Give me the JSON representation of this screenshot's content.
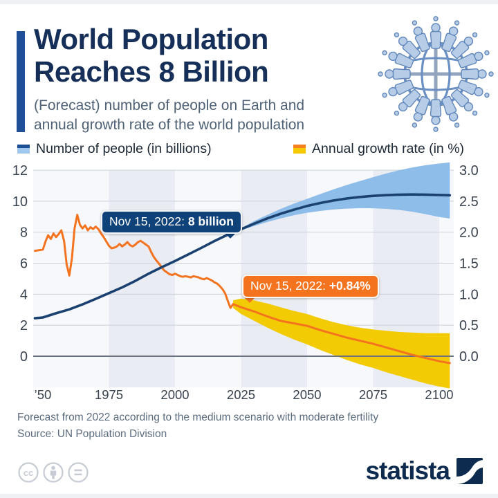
{
  "header": {
    "title_line1": "World Population",
    "title_line2": "Reaches 8 Billion",
    "subtitle_line1": "(Forecast) number of people on Earth and",
    "subtitle_line2": "annual growth rate of the world population"
  },
  "colors": {
    "accent_blue": "#1e4f97",
    "annotation_navy": "#10427a",
    "annotation_orange": "#f4731f",
    "brand_navy": "#0d2b4e"
  },
  "legend": {
    "items": [
      {
        "label": "Number of people (in billions)",
        "colors": [
          "#1c4f94",
          "#a0c8ee"
        ]
      },
      {
        "label": "Annual growth rate (in %)",
        "colors": [
          "#f5821f",
          "#f6c800"
        ]
      }
    ]
  },
  "annotations": {
    "population": {
      "prefix": "Nov 15, 2022: ",
      "value": "8 billion"
    },
    "growth": {
      "prefix": "Nov 15, 2022: ",
      "value": "+0.84%"
    }
  },
  "chart_data": {
    "type": "line",
    "title": "World Population Reaches 8 Billion",
    "left_axis": {
      "label": "Number of people (in billions)",
      "ticks": [
        0,
        2,
        4,
        6,
        8,
        10,
        12
      ],
      "range": [
        0,
        12
      ]
    },
    "right_axis": {
      "label": "Annual growth rate (in %)",
      "ticks": [
        "0.0",
        "0.5",
        "1.0",
        "1.5",
        "2.0",
        "2.5",
        "3.0"
      ],
      "range": [
        0,
        3
      ]
    },
    "x_axis": {
      "ticks": [
        "’50",
        "1975",
        "2000",
        "2025",
        "2050",
        "2075",
        "2100"
      ],
      "tick_years": [
        1950,
        1975,
        2000,
        2025,
        2050,
        2075,
        2100
      ],
      "range": [
        1947,
        2104
      ]
    },
    "forecast_start": 2022,
    "plot": {
      "bg": "#f6f8fb",
      "band_color": "#e9ecf2",
      "bands": [
        [
          1975,
          2000
        ],
        [
          2025,
          2050
        ],
        [
          2075,
          2100
        ]
      ],
      "grid_color": "#cbd0d8",
      "zero_color": "#6a7280"
    },
    "series": [
      {
        "id": "population",
        "name": "Number of people (in billions)",
        "axis": "left",
        "color": "#1a416f",
        "points": [
          [
            1947,
            2.45
          ],
          [
            1950,
            2.5
          ],
          [
            1955,
            2.77
          ],
          [
            1960,
            3.02
          ],
          [
            1965,
            3.34
          ],
          [
            1970,
            3.7
          ],
          [
            1975,
            4.07
          ],
          [
            1980,
            4.44
          ],
          [
            1985,
            4.86
          ],
          [
            1990,
            5.32
          ],
          [
            1995,
            5.74
          ],
          [
            2000,
            6.14
          ],
          [
            2005,
            6.56
          ],
          [
            2010,
            6.99
          ],
          [
            2015,
            7.43
          ],
          [
            2020,
            7.84
          ],
          [
            2022,
            7.98
          ],
          [
            2025,
            8.19
          ],
          [
            2030,
            8.55
          ],
          [
            2035,
            8.89
          ],
          [
            2040,
            9.19
          ],
          [
            2045,
            9.45
          ],
          [
            2050,
            9.69
          ],
          [
            2055,
            9.88
          ],
          [
            2060,
            10.04
          ],
          [
            2065,
            10.17
          ],
          [
            2070,
            10.27
          ],
          [
            2075,
            10.34
          ],
          [
            2080,
            10.39
          ],
          [
            2085,
            10.42
          ],
          [
            2090,
            10.43
          ],
          [
            2095,
            10.42
          ],
          [
            2100,
            10.4
          ],
          [
            2104,
            10.38
          ]
        ]
      },
      {
        "id": "population_forecast_range",
        "type": "band",
        "axis": "left",
        "color": "#8ebdea",
        "upper": [
          [
            2022,
            7.98
          ],
          [
            2025,
            8.25
          ],
          [
            2030,
            8.72
          ],
          [
            2035,
            9.12
          ],
          [
            2040,
            9.5
          ],
          [
            2045,
            9.84
          ],
          [
            2050,
            10.15
          ],
          [
            2055,
            10.46
          ],
          [
            2060,
            10.76
          ],
          [
            2065,
            11.04
          ],
          [
            2070,
            11.3
          ],
          [
            2075,
            11.55
          ],
          [
            2080,
            11.79
          ],
          [
            2085,
            12.0
          ],
          [
            2090,
            12.18
          ],
          [
            2095,
            12.32
          ],
          [
            2100,
            12.43
          ],
          [
            2104,
            12.5
          ]
        ],
        "lower": [
          [
            2022,
            7.98
          ],
          [
            2025,
            8.13
          ],
          [
            2030,
            8.4
          ],
          [
            2035,
            8.66
          ],
          [
            2040,
            8.89
          ],
          [
            2045,
            9.09
          ],
          [
            2050,
            9.25
          ],
          [
            2055,
            9.37
          ],
          [
            2060,
            9.46
          ],
          [
            2065,
            9.52
          ],
          [
            2070,
            9.55
          ],
          [
            2075,
            9.54
          ],
          [
            2080,
            9.5
          ],
          [
            2085,
            9.43
          ],
          [
            2090,
            9.31
          ],
          [
            2095,
            9.16
          ],
          [
            2100,
            8.98
          ],
          [
            2104,
            8.88
          ]
        ]
      },
      {
        "id": "growth_rate",
        "name": "Annual growth rate (in %)",
        "axis": "right",
        "color": "#f4731f",
        "points": [
          [
            1947,
            1.7
          ],
          [
            1950,
            1.72
          ],
          [
            1951,
            1.85
          ],
          [
            1952,
            1.95
          ],
          [
            1953,
            1.89
          ],
          [
            1954,
            1.98
          ],
          [
            1955,
            1.92
          ],
          [
            1956,
            1.97
          ],
          [
            1957,
            2.03
          ],
          [
            1958,
            1.86
          ],
          [
            1959,
            1.48
          ],
          [
            1960,
            1.3
          ],
          [
            1961,
            1.58
          ],
          [
            1962,
            2.06
          ],
          [
            1963,
            2.28
          ],
          [
            1964,
            2.12
          ],
          [
            1965,
            2.06
          ],
          [
            1966,
            2.11
          ],
          [
            1967,
            2.03
          ],
          [
            1968,
            2.08
          ],
          [
            1969,
            2.05
          ],
          [
            1970,
            2.09
          ],
          [
            1971,
            2.05
          ],
          [
            1972,
            1.98
          ],
          [
            1973,
            1.92
          ],
          [
            1974,
            1.85
          ],
          [
            1975,
            1.78
          ],
          [
            1976,
            1.74
          ],
          [
            1977,
            1.75
          ],
          [
            1978,
            1.77
          ],
          [
            1979,
            1.81
          ],
          [
            1980,
            1.77
          ],
          [
            1981,
            1.8
          ],
          [
            1982,
            1.84
          ],
          [
            1983,
            1.79
          ],
          [
            1984,
            1.77
          ],
          [
            1985,
            1.8
          ],
          [
            1986,
            1.84
          ],
          [
            1987,
            1.86
          ],
          [
            1988,
            1.83
          ],
          [
            1989,
            1.8
          ],
          [
            1990,
            1.77
          ],
          [
            1991,
            1.68
          ],
          [
            1992,
            1.6
          ],
          [
            1993,
            1.54
          ],
          [
            1994,
            1.49
          ],
          [
            1995,
            1.43
          ],
          [
            1996,
            1.38
          ],
          [
            1997,
            1.35
          ],
          [
            1998,
            1.32
          ],
          [
            1999,
            1.31
          ],
          [
            2000,
            1.33
          ],
          [
            2001,
            1.31
          ],
          [
            2002,
            1.29
          ],
          [
            2003,
            1.28
          ],
          [
            2004,
            1.29
          ],
          [
            2005,
            1.28
          ],
          [
            2006,
            1.27
          ],
          [
            2007,
            1.29
          ],
          [
            2008,
            1.28
          ],
          [
            2009,
            1.27
          ],
          [
            2010,
            1.25
          ],
          [
            2011,
            1.24
          ],
          [
            2012,
            1.26
          ],
          [
            2013,
            1.24
          ],
          [
            2014,
            1.22
          ],
          [
            2015,
            1.19
          ],
          [
            2016,
            1.17
          ],
          [
            2017,
            1.13
          ],
          [
            2018,
            1.08
          ],
          [
            2019,
            1.01
          ],
          [
            2020,
            0.89
          ],
          [
            2021,
            0.78
          ],
          [
            2022,
            0.84
          ],
          [
            2025,
            0.79
          ],
          [
            2030,
            0.72
          ],
          [
            2035,
            0.64
          ],
          [
            2040,
            0.57
          ],
          [
            2045,
            0.53
          ],
          [
            2050,
            0.49
          ],
          [
            2055,
            0.42
          ],
          [
            2060,
            0.36
          ],
          [
            2065,
            0.3
          ],
          [
            2070,
            0.25
          ],
          [
            2075,
            0.2
          ],
          [
            2080,
            0.14
          ],
          [
            2085,
            0.08
          ],
          [
            2090,
            0.02
          ],
          [
            2095,
            -0.03
          ],
          [
            2100,
            -0.08
          ],
          [
            2104,
            -0.11
          ]
        ]
      },
      {
        "id": "growth_forecast_range",
        "type": "band",
        "axis": "right",
        "color": "#f2cb05",
        "upper": [
          [
            2022,
            0.9
          ],
          [
            2025,
            0.93
          ],
          [
            2030,
            0.9
          ],
          [
            2035,
            0.85
          ],
          [
            2040,
            0.79
          ],
          [
            2045,
            0.73
          ],
          [
            2050,
            0.68
          ],
          [
            2055,
            0.61
          ],
          [
            2060,
            0.55
          ],
          [
            2065,
            0.5
          ],
          [
            2070,
            0.46
          ],
          [
            2075,
            0.43
          ],
          [
            2080,
            0.41
          ],
          [
            2085,
            0.39
          ],
          [
            2090,
            0.38
          ],
          [
            2095,
            0.37
          ],
          [
            2100,
            0.37
          ],
          [
            2104,
            0.37
          ]
        ],
        "lower": [
          [
            2022,
            0.78
          ],
          [
            2025,
            0.68
          ],
          [
            2030,
            0.57
          ],
          [
            2035,
            0.46
          ],
          [
            2040,
            0.36
          ],
          [
            2045,
            0.27
          ],
          [
            2050,
            0.19
          ],
          [
            2055,
            0.1
          ],
          [
            2060,
            0.02
          ],
          [
            2065,
            -0.06
          ],
          [
            2070,
            -0.13
          ],
          [
            2075,
            -0.19
          ],
          [
            2080,
            -0.26
          ],
          [
            2085,
            -0.32
          ],
          [
            2090,
            -0.38
          ],
          [
            2095,
            -0.44
          ],
          [
            2100,
            -0.49
          ],
          [
            2104,
            -0.52
          ]
        ]
      }
    ],
    "point_annotations": [
      {
        "series": "population",
        "year": 2022,
        "value": 8.0,
        "label": "Nov 15, 2022: 8 billion"
      },
      {
        "series": "growth_rate",
        "year": 2022,
        "value": 0.84,
        "label": "Nov 15, 2022: +0.84%"
      }
    ],
    "legend_position": "top",
    "grid": true
  },
  "footer": {
    "line1": "Forecast from 2022 according to the medium scenario with moderate fertility",
    "line2": "Source: UN Population Division"
  },
  "branding": {
    "logo_text": "statista"
  },
  "license": {
    "icons": [
      "cc",
      "attribution",
      "no-derivatives"
    ]
  }
}
